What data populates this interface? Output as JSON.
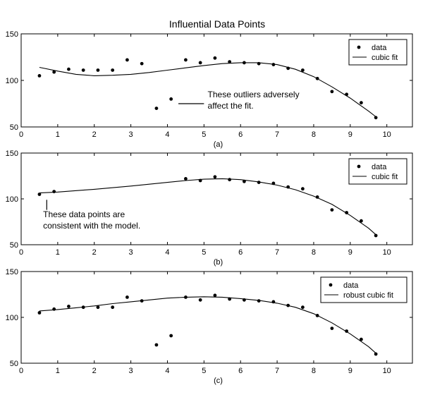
{
  "title": "Influential Data Points",
  "chart_data": [
    {
      "type": "scatter",
      "label": "(a)",
      "xlim": [
        0,
        10.7
      ],
      "ylim": [
        50,
        150
      ],
      "xticks": [
        0,
        1,
        2,
        3,
        4,
        5,
        6,
        7,
        8,
        9,
        10
      ],
      "yticks": [
        50,
        100,
        150
      ],
      "legend_position": "top-right",
      "series": [
        {
          "name": "data",
          "kind": "markers",
          "x": [
            0.5,
            0.9,
            1.3,
            1.7,
            2.1,
            2.5,
            2.9,
            3.3,
            3.7,
            4.1,
            4.5,
            4.9,
            5.3,
            5.7,
            6.1,
            6.5,
            6.9,
            7.3,
            7.7,
            8.1,
            8.5,
            8.9,
            9.3,
            9.7
          ],
          "y": [
            105,
            109,
            112,
            111,
            111,
            111,
            122,
            118,
            70,
            80,
            122,
            119,
            124,
            120,
            119,
            118,
            117,
            113,
            111,
            102,
            88,
            85,
            76,
            60
          ]
        },
        {
          "name": "cubic fit",
          "kind": "line",
          "x": [
            0.5,
            1.0,
            1.5,
            2.0,
            2.5,
            3.0,
            3.5,
            4.0,
            4.5,
            5.0,
            5.5,
            6.0,
            6.5,
            7.0,
            7.5,
            8.0,
            8.5,
            9.0,
            9.5,
            9.7
          ],
          "y": [
            114,
            110,
            106.5,
            105,
            105.5,
            106.5,
            108.5,
            111,
            113.5,
            116,
            118,
            119,
            119,
            117,
            112,
            104,
            93,
            81,
            67,
            61
          ]
        }
      ],
      "annotation": {
        "text_line1": "These outliers adversely",
        "text_line2": "affect the fit.",
        "line_x": [
          4.3,
          5.0
        ],
        "line_y": 75,
        "text_x": 5.1,
        "text_y": 82
      }
    },
    {
      "type": "scatter",
      "label": "(b)",
      "xlim": [
        0,
        10.7
      ],
      "ylim": [
        50,
        150
      ],
      "xticks": [
        0,
        1,
        2,
        3,
        4,
        5,
        6,
        7,
        8,
        9,
        10
      ],
      "yticks": [
        50,
        100,
        150
      ],
      "legend_position": "top-right",
      "series": [
        {
          "name": "data",
          "kind": "markers",
          "x": [
            0.5,
            0.9,
            4.5,
            4.9,
            5.3,
            5.7,
            6.1,
            6.5,
            6.9,
            7.3,
            7.7,
            8.1,
            8.5,
            8.9,
            9.3,
            9.7
          ],
          "y": [
            105,
            108,
            122,
            120,
            124,
            121,
            119,
            118,
            117,
            113,
            111,
            102,
            88,
            85,
            76,
            60
          ]
        },
        {
          "name": "cubic fit",
          "kind": "line",
          "x": [
            0.5,
            1.0,
            2.0,
            3.0,
            4.0,
            4.5,
            5.0,
            5.5,
            6.0,
            6.5,
            7.0,
            7.5,
            8.0,
            8.5,
            9.0,
            9.5,
            9.7
          ],
          "y": [
            106.5,
            107.5,
            110.5,
            114,
            118,
            120,
            121.5,
            122,
            121,
            118.5,
            115,
            110,
            103,
            94,
            82,
            68,
            61
          ]
        }
      ],
      "annotation": {
        "text_line1": "These data points are",
        "text_line2": "consistent with the model.",
        "line_x": 0.7,
        "line_y": [
          99,
          88
        ],
        "text_x": 0.6,
        "text_y": 80
      }
    },
    {
      "type": "scatter",
      "label": "(c)",
      "xlim": [
        0,
        10.7
      ],
      "ylim": [
        50,
        150
      ],
      "xticks": [
        0,
        1,
        2,
        3,
        4,
        5,
        6,
        7,
        8,
        9,
        10
      ],
      "yticks": [
        50,
        100,
        150
      ],
      "legend_position": "top-right",
      "series": [
        {
          "name": "data",
          "kind": "markers",
          "x": [
            0.5,
            0.9,
            1.3,
            1.7,
            2.1,
            2.5,
            2.9,
            3.3,
            3.7,
            4.1,
            4.5,
            4.9,
            5.3,
            5.7,
            6.1,
            6.5,
            6.9,
            7.3,
            7.7,
            8.1,
            8.5,
            8.9,
            9.3,
            9.7
          ],
          "y": [
            105,
            109,
            112,
            111,
            111,
            111,
            122,
            118,
            70,
            80,
            122,
            119,
            124,
            120,
            119,
            118,
            117,
            113,
            111,
            102,
            88,
            85,
            76,
            60
          ]
        },
        {
          "name": "robust cubic fit",
          "kind": "line",
          "x": [
            0.5,
            1.0,
            1.5,
            2.0,
            2.5,
            3.0,
            3.5,
            4.0,
            4.5,
            5.0,
            5.5,
            6.0,
            6.5,
            7.0,
            7.5,
            8.0,
            8.5,
            9.0,
            9.5,
            9.7
          ],
          "y": [
            107,
            108.5,
            110.5,
            112.5,
            115,
            117,
            119,
            121,
            122,
            122.5,
            122,
            120.5,
            118.5,
            115.5,
            111,
            104,
            94,
            82,
            68,
            61
          ]
        }
      ]
    }
  ]
}
